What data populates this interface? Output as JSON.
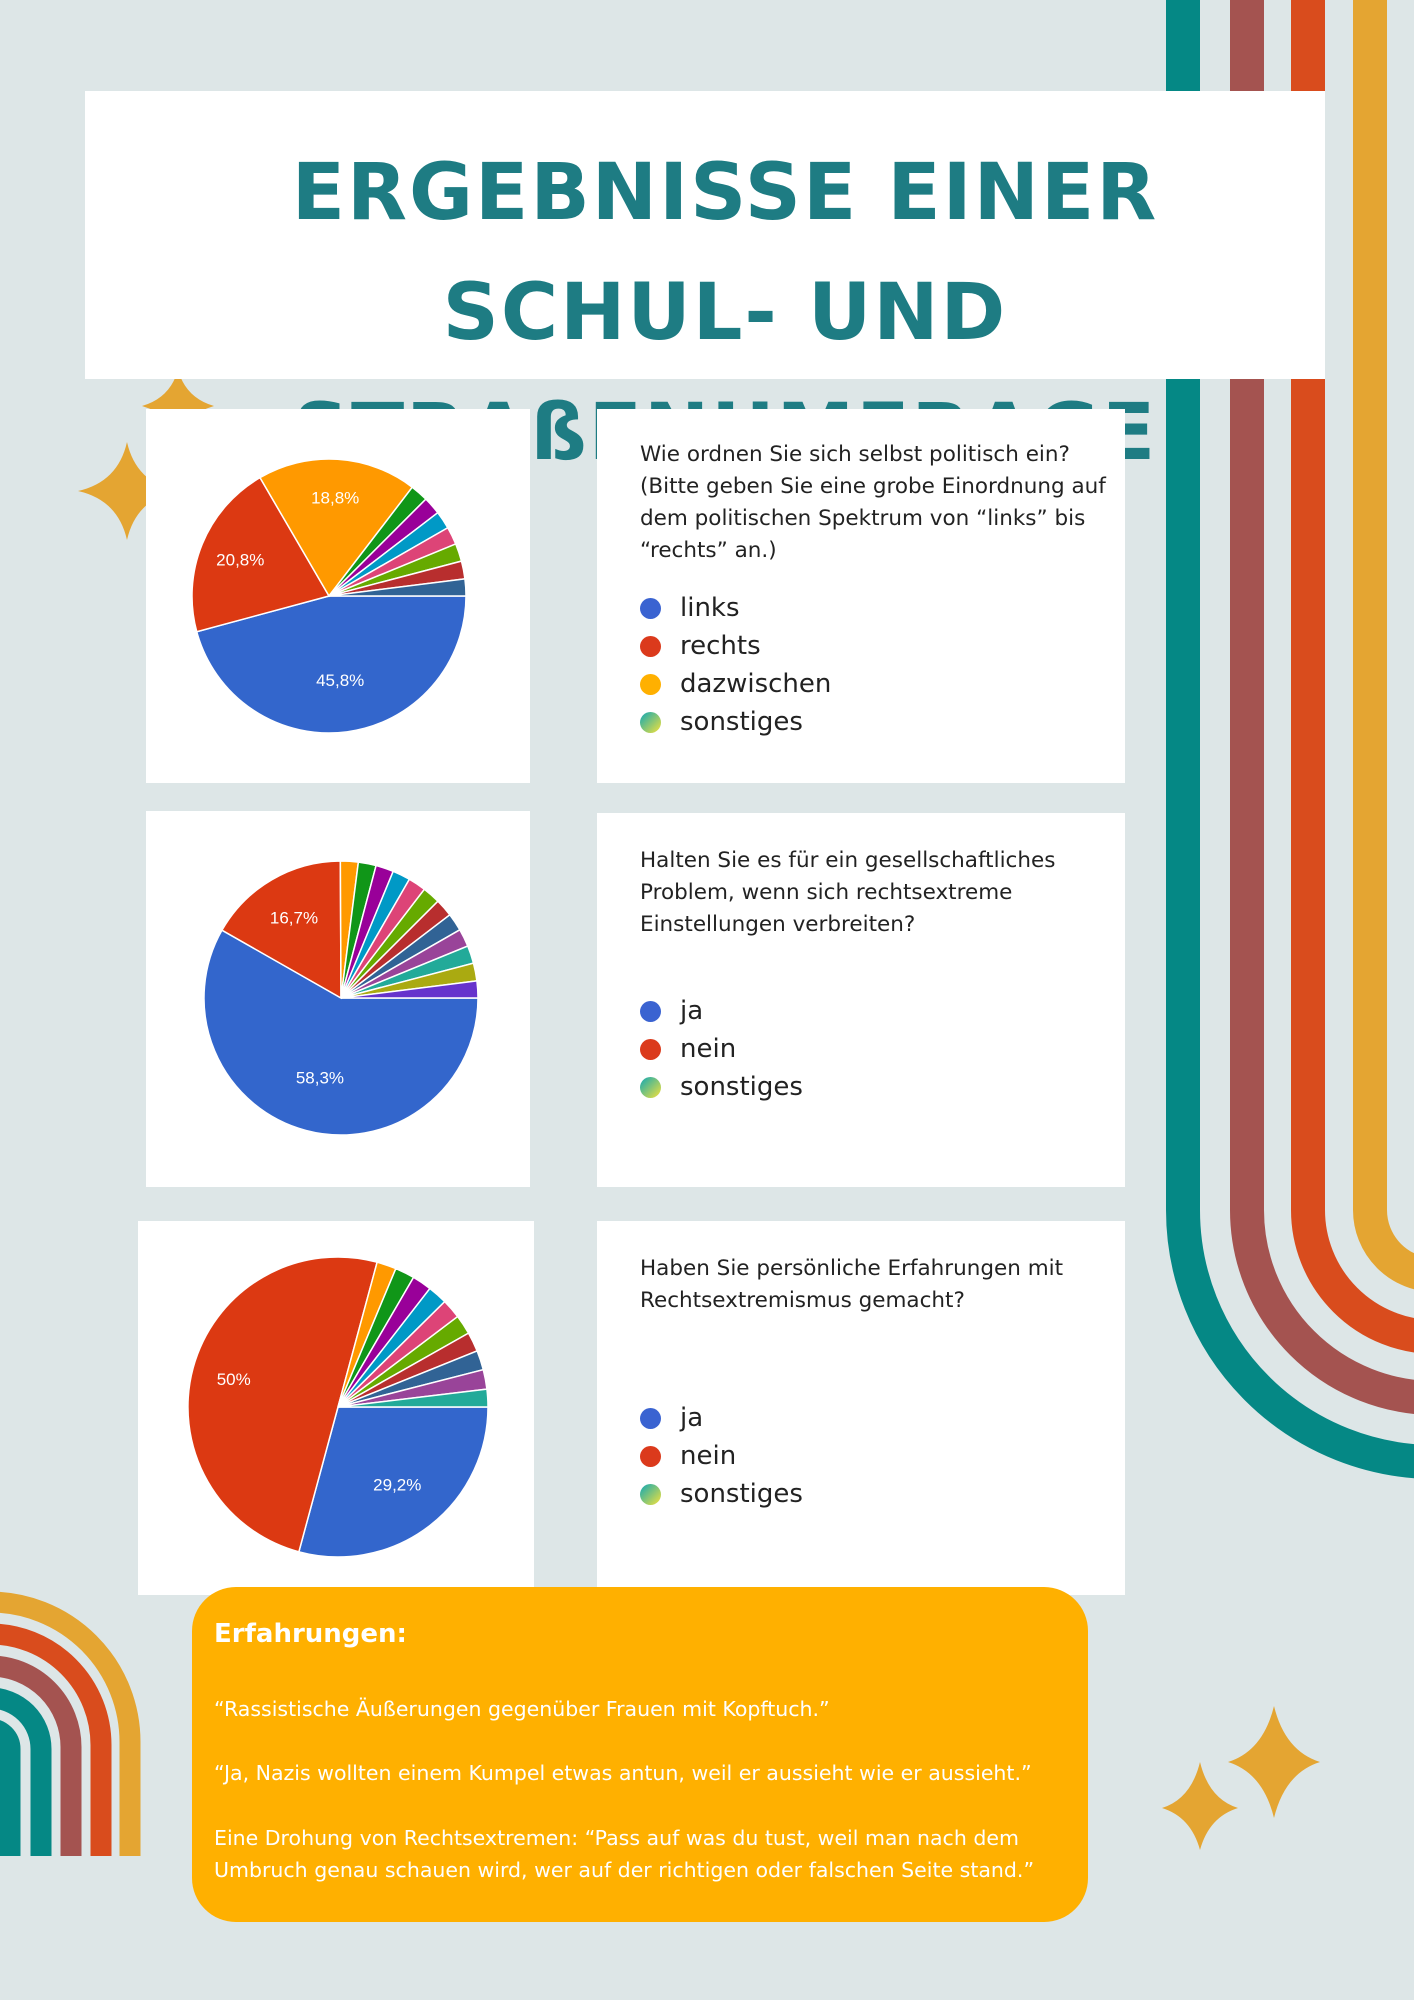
{
  "title_line1": "ERGEBNISSE EINER SCHUL- UND",
  "title_line2": "STRAßENUMFRAGE",
  "colors": {
    "background": "#dde6e7",
    "title": "#1e7c83",
    "teal": "#058885",
    "mauve": "#a45350",
    "orange": "#d94c1d",
    "gold": "#e4a532",
    "box": "#ffb000"
  },
  "questions": [
    {
      "question": "Wie ordnen Sie sich selbst politisch ein? (Bitte geben Sie eine grobe Einordnung auf dem politischen Spektrum von “links” bis “rechts” an.)",
      "legend": [
        {
          "label": "links",
          "color": "#3a63d1"
        },
        {
          "label": "rechts",
          "color": "#db3a1c"
        },
        {
          "label": "dazwischen",
          "color": "#ffb000"
        },
        {
          "label": "sonstiges",
          "color": "gradient"
        }
      ]
    },
    {
      "question": "Halten Sie es für ein gesellschaftliches Problem, wenn sich rechtsextreme Einstellungen verbreiten?",
      "legend": [
        {
          "label": "ja",
          "color": "#3a63d1"
        },
        {
          "label": "nein",
          "color": "#db3a1c"
        },
        {
          "label": "sonstiges",
          "color": "gradient"
        }
      ]
    },
    {
      "question": "Haben Sie persönliche Erfahrungen mit Rechtsextremismus gemacht?",
      "legend": [
        {
          "label": "ja",
          "color": "#3a63d1"
        },
        {
          "label": "nein",
          "color": "#db3a1c"
        },
        {
          "label": "sonstiges",
          "color": "gradient"
        }
      ]
    }
  ],
  "chart_data": [
    {
      "type": "pie",
      "slices": [
        {
          "value": 45.8,
          "label": "45,8%",
          "color": "#3366cc"
        },
        {
          "value": 20.8,
          "label": "20,8%",
          "color": "#dc3912"
        },
        {
          "value": 18.8,
          "label": "18,8%",
          "color": "#ff9900"
        },
        {
          "value": 2.1,
          "label": "",
          "color": "#109618"
        },
        {
          "value": 2.1,
          "label": "",
          "color": "#990099"
        },
        {
          "value": 2.1,
          "label": "",
          "color": "#0099c6"
        },
        {
          "value": 2.1,
          "label": "",
          "color": "#dd4477"
        },
        {
          "value": 2.1,
          "label": "",
          "color": "#66aa00"
        },
        {
          "value": 2.1,
          "label": "",
          "color": "#b82e2e"
        },
        {
          "value": 2.0,
          "label": "",
          "color": "#316395"
        }
      ]
    },
    {
      "type": "pie",
      "slices": [
        {
          "value": 58.3,
          "label": "58,3%",
          "color": "#3366cc"
        },
        {
          "value": 16.7,
          "label": "16,7%",
          "color": "#dc3912"
        },
        {
          "value": 2.1,
          "label": "",
          "color": "#ff9900"
        },
        {
          "value": 2.1,
          "label": "",
          "color": "#109618"
        },
        {
          "value": 2.1,
          "label": "",
          "color": "#990099"
        },
        {
          "value": 2.1,
          "label": "",
          "color": "#0099c6"
        },
        {
          "value": 2.1,
          "label": "",
          "color": "#dd4477"
        },
        {
          "value": 2.1,
          "label": "",
          "color": "#66aa00"
        },
        {
          "value": 2.1,
          "label": "",
          "color": "#b82e2e"
        },
        {
          "value": 2.1,
          "label": "",
          "color": "#316395"
        },
        {
          "value": 2.1,
          "label": "",
          "color": "#994499"
        },
        {
          "value": 2.1,
          "label": "",
          "color": "#22aa99"
        },
        {
          "value": 2.1,
          "label": "",
          "color": "#aaaa11"
        },
        {
          "value": 2.0,
          "label": "",
          "color": "#6633cc"
        }
      ]
    },
    {
      "type": "pie",
      "slices": [
        {
          "value": 29.2,
          "label": "29,2%",
          "color": "#3366cc"
        },
        {
          "value": 50.0,
          "label": "50%",
          "color": "#dc3912"
        },
        {
          "value": 2.1,
          "label": "",
          "color": "#ff9900"
        },
        {
          "value": 2.1,
          "label": "",
          "color": "#109618"
        },
        {
          "value": 2.1,
          "label": "",
          "color": "#990099"
        },
        {
          "value": 2.1,
          "label": "",
          "color": "#0099c6"
        },
        {
          "value": 2.1,
          "label": "",
          "color": "#dd4477"
        },
        {
          "value": 2.1,
          "label": "",
          "color": "#66aa00"
        },
        {
          "value": 2.1,
          "label": "",
          "color": "#b82e2e"
        },
        {
          "value": 2.1,
          "label": "",
          "color": "#316395"
        },
        {
          "value": 2.1,
          "label": "",
          "color": "#994499"
        },
        {
          "value": 1.9,
          "label": "",
          "color": "#22aa99"
        }
      ]
    }
  ],
  "experiences": {
    "heading": "Erfahrungen:",
    "quote1": "“Rassistische Äußerungen gegenüber Frauen mit Kopftuch.”",
    "quote2": "“Ja, Nazis wollten einem Kumpel etwas antun, weil er aussieht wie er aussieht.”",
    "quote3": "Eine Drohung von Rechtsextremen: “Pass auf was du tust, weil man nach dem Umbruch genau schauen wird, wer auf der richtigen oder falschen Seite stand.”"
  }
}
